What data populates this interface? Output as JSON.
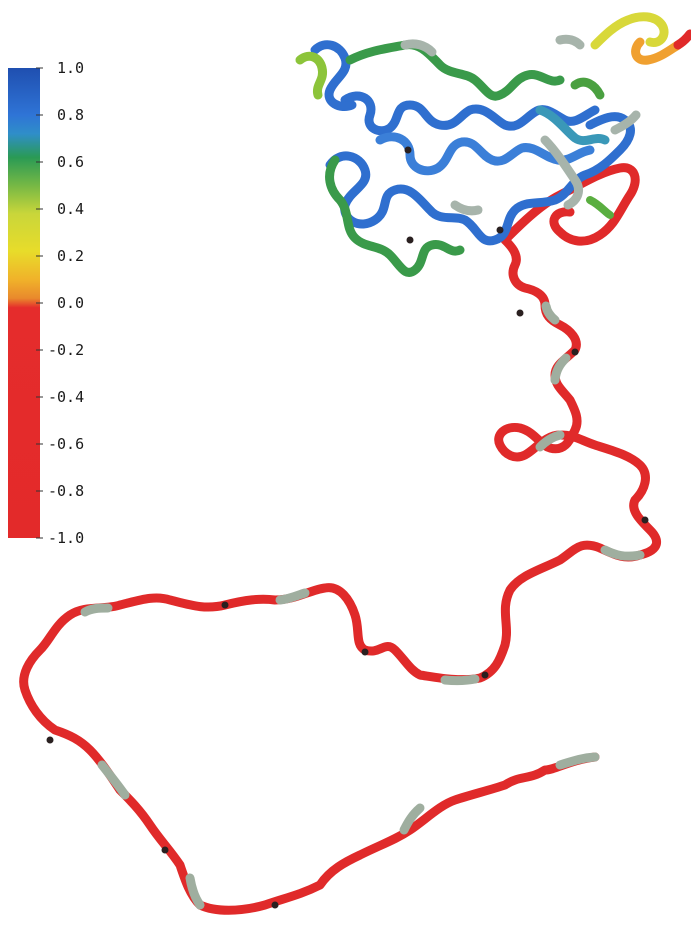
{
  "legend": {
    "ticks": [
      "1.0",
      "0.8",
      "0.6",
      "0.4",
      "0.2",
      "0.0",
      "-0.2",
      "-0.4",
      "-0.6",
      "-0.8",
      "-1.0"
    ],
    "range": [
      -1.0,
      1.0
    ],
    "gradient_stops": [
      {
        "value": 1.0,
        "color": "#1f4fb0"
      },
      {
        "value": 0.8,
        "color": "#2f74d6"
      },
      {
        "value": 0.72,
        "color": "#2f8ec9"
      },
      {
        "value": 0.62,
        "color": "#2a9a55"
      },
      {
        "value": 0.5,
        "color": "#76b845"
      },
      {
        "value": 0.38,
        "color": "#c9d63a"
      },
      {
        "value": 0.22,
        "color": "#e8dc2a"
      },
      {
        "value": 0.1,
        "color": "#f0b22a"
      },
      {
        "value": 0.02,
        "color": "#e9892c"
      },
      {
        "value": -0.02,
        "color": "#e52c2c"
      },
      {
        "value": -1.0,
        "color": "#e32a2a"
      }
    ]
  },
  "colors": {
    "background": "#ffffff",
    "positive_high": "#2f6fcf",
    "positive_mid": "#3a9a4a",
    "positive_low": "#d4d83a",
    "near_zero": "#f0a030",
    "negative": "#e02a2a",
    "neutral_gray": "#9aa89e"
  }
}
